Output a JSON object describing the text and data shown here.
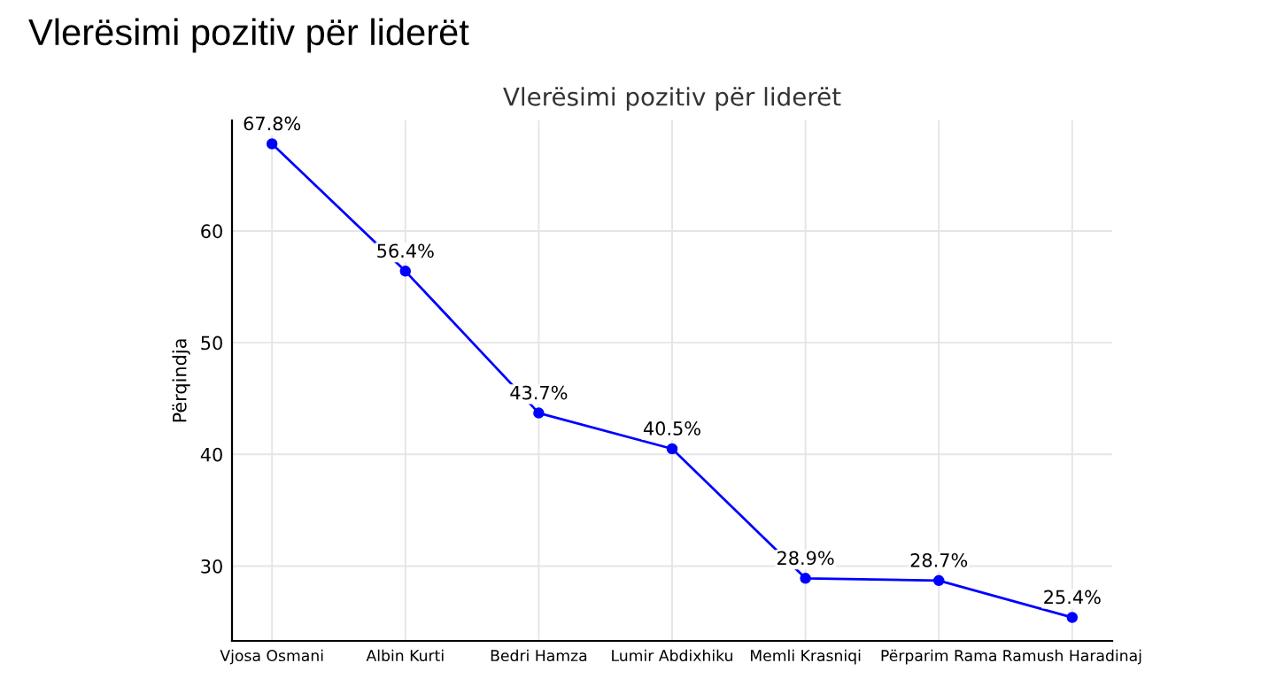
{
  "chart_data": {
    "type": "line",
    "title": "Vlerësimi pozitiv për liderët",
    "subtitle": "Vlerësimi pozitiv për liderët",
    "ylabel": "Përqindja",
    "categories": [
      "Vjosa Osmani",
      "Albin Kurti",
      "Bedri Hamza",
      "Lumir Abdixhiku",
      "Memli Krasniqi",
      "Përparim Rama",
      "Ramush Haradinaj"
    ],
    "series": [
      {
        "color": "#0000ff",
        "values": [
          67.8,
          56.4,
          43.7,
          40.5,
          28.9,
          28.7,
          25.4
        ],
        "value_labels": [
          "67.8%",
          "56.4%",
          "43.7%",
          "40.5%",
          "28.9%",
          "28.7%",
          "25.4%"
        ]
      }
    ],
    "ylim": [
      23.3,
      69.9
    ],
    "yticks": [
      30,
      40,
      50,
      60
    ],
    "grid": true,
    "marker": "circle",
    "line_style": "solid",
    "legend": false
  }
}
